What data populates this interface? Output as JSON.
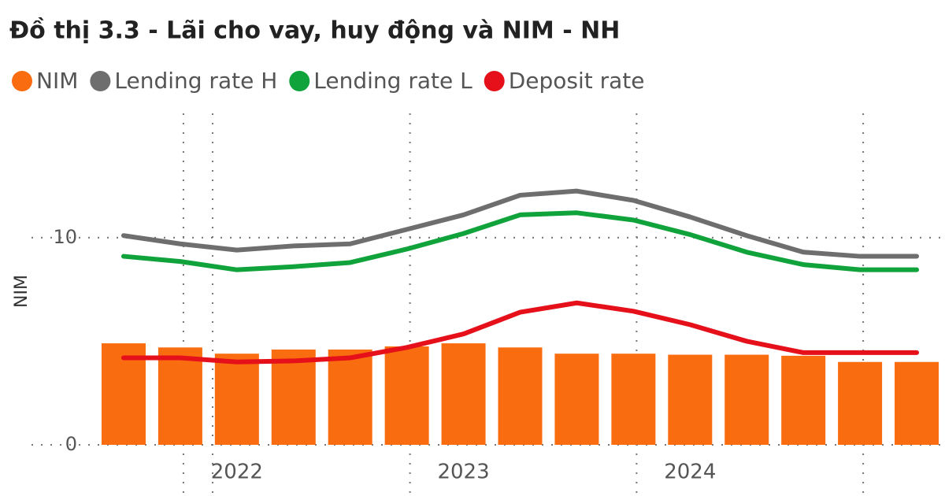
{
  "chart_data": {
    "type": "bar_line",
    "title": "Đồ thị 3.3 - Lãi cho vay, huy động và NIM - NH",
    "y_label": "NIM",
    "categories": [
      null,
      null,
      "2022",
      null,
      null,
      null,
      "2023",
      null,
      null,
      null,
      "2024",
      null,
      null,
      null,
      null
    ],
    "series": [
      {
        "name": "NIM",
        "type": "bar",
        "color": "#f96c0f",
        "values": [
          4.9,
          4.7,
          4.4,
          4.6,
          4.6,
          4.75,
          4.9,
          4.7,
          4.4,
          4.4,
          4.35,
          4.35,
          4.3,
          4.0,
          4.0
        ]
      },
      {
        "name": "Lending rate H",
        "type": "line",
        "color": "#6e6e6e",
        "values": [
          10.1,
          9.7,
          9.4,
          9.6,
          9.7,
          10.4,
          11.1,
          12.05,
          12.25,
          11.8,
          11.0,
          10.1,
          9.3,
          9.1,
          9.1
        ]
      },
      {
        "name": "Lending rate L",
        "type": "line",
        "color": "#10a33c",
        "values": [
          9.1,
          8.85,
          8.45,
          8.6,
          8.8,
          9.45,
          10.2,
          11.1,
          11.2,
          10.85,
          10.15,
          9.3,
          8.7,
          8.45,
          8.45
        ]
      },
      {
        "name": "Deposit rate",
        "type": "line",
        "color": "#e5101a",
        "values": [
          4.2,
          4.2,
          4.0,
          4.05,
          4.2,
          4.7,
          5.35,
          6.4,
          6.85,
          6.45,
          5.8,
          5.0,
          4.45,
          4.45,
          4.45
        ]
      }
    ],
    "ylim": [
      0,
      16
    ],
    "yticks": [
      0,
      10
    ],
    "grid": true
  }
}
